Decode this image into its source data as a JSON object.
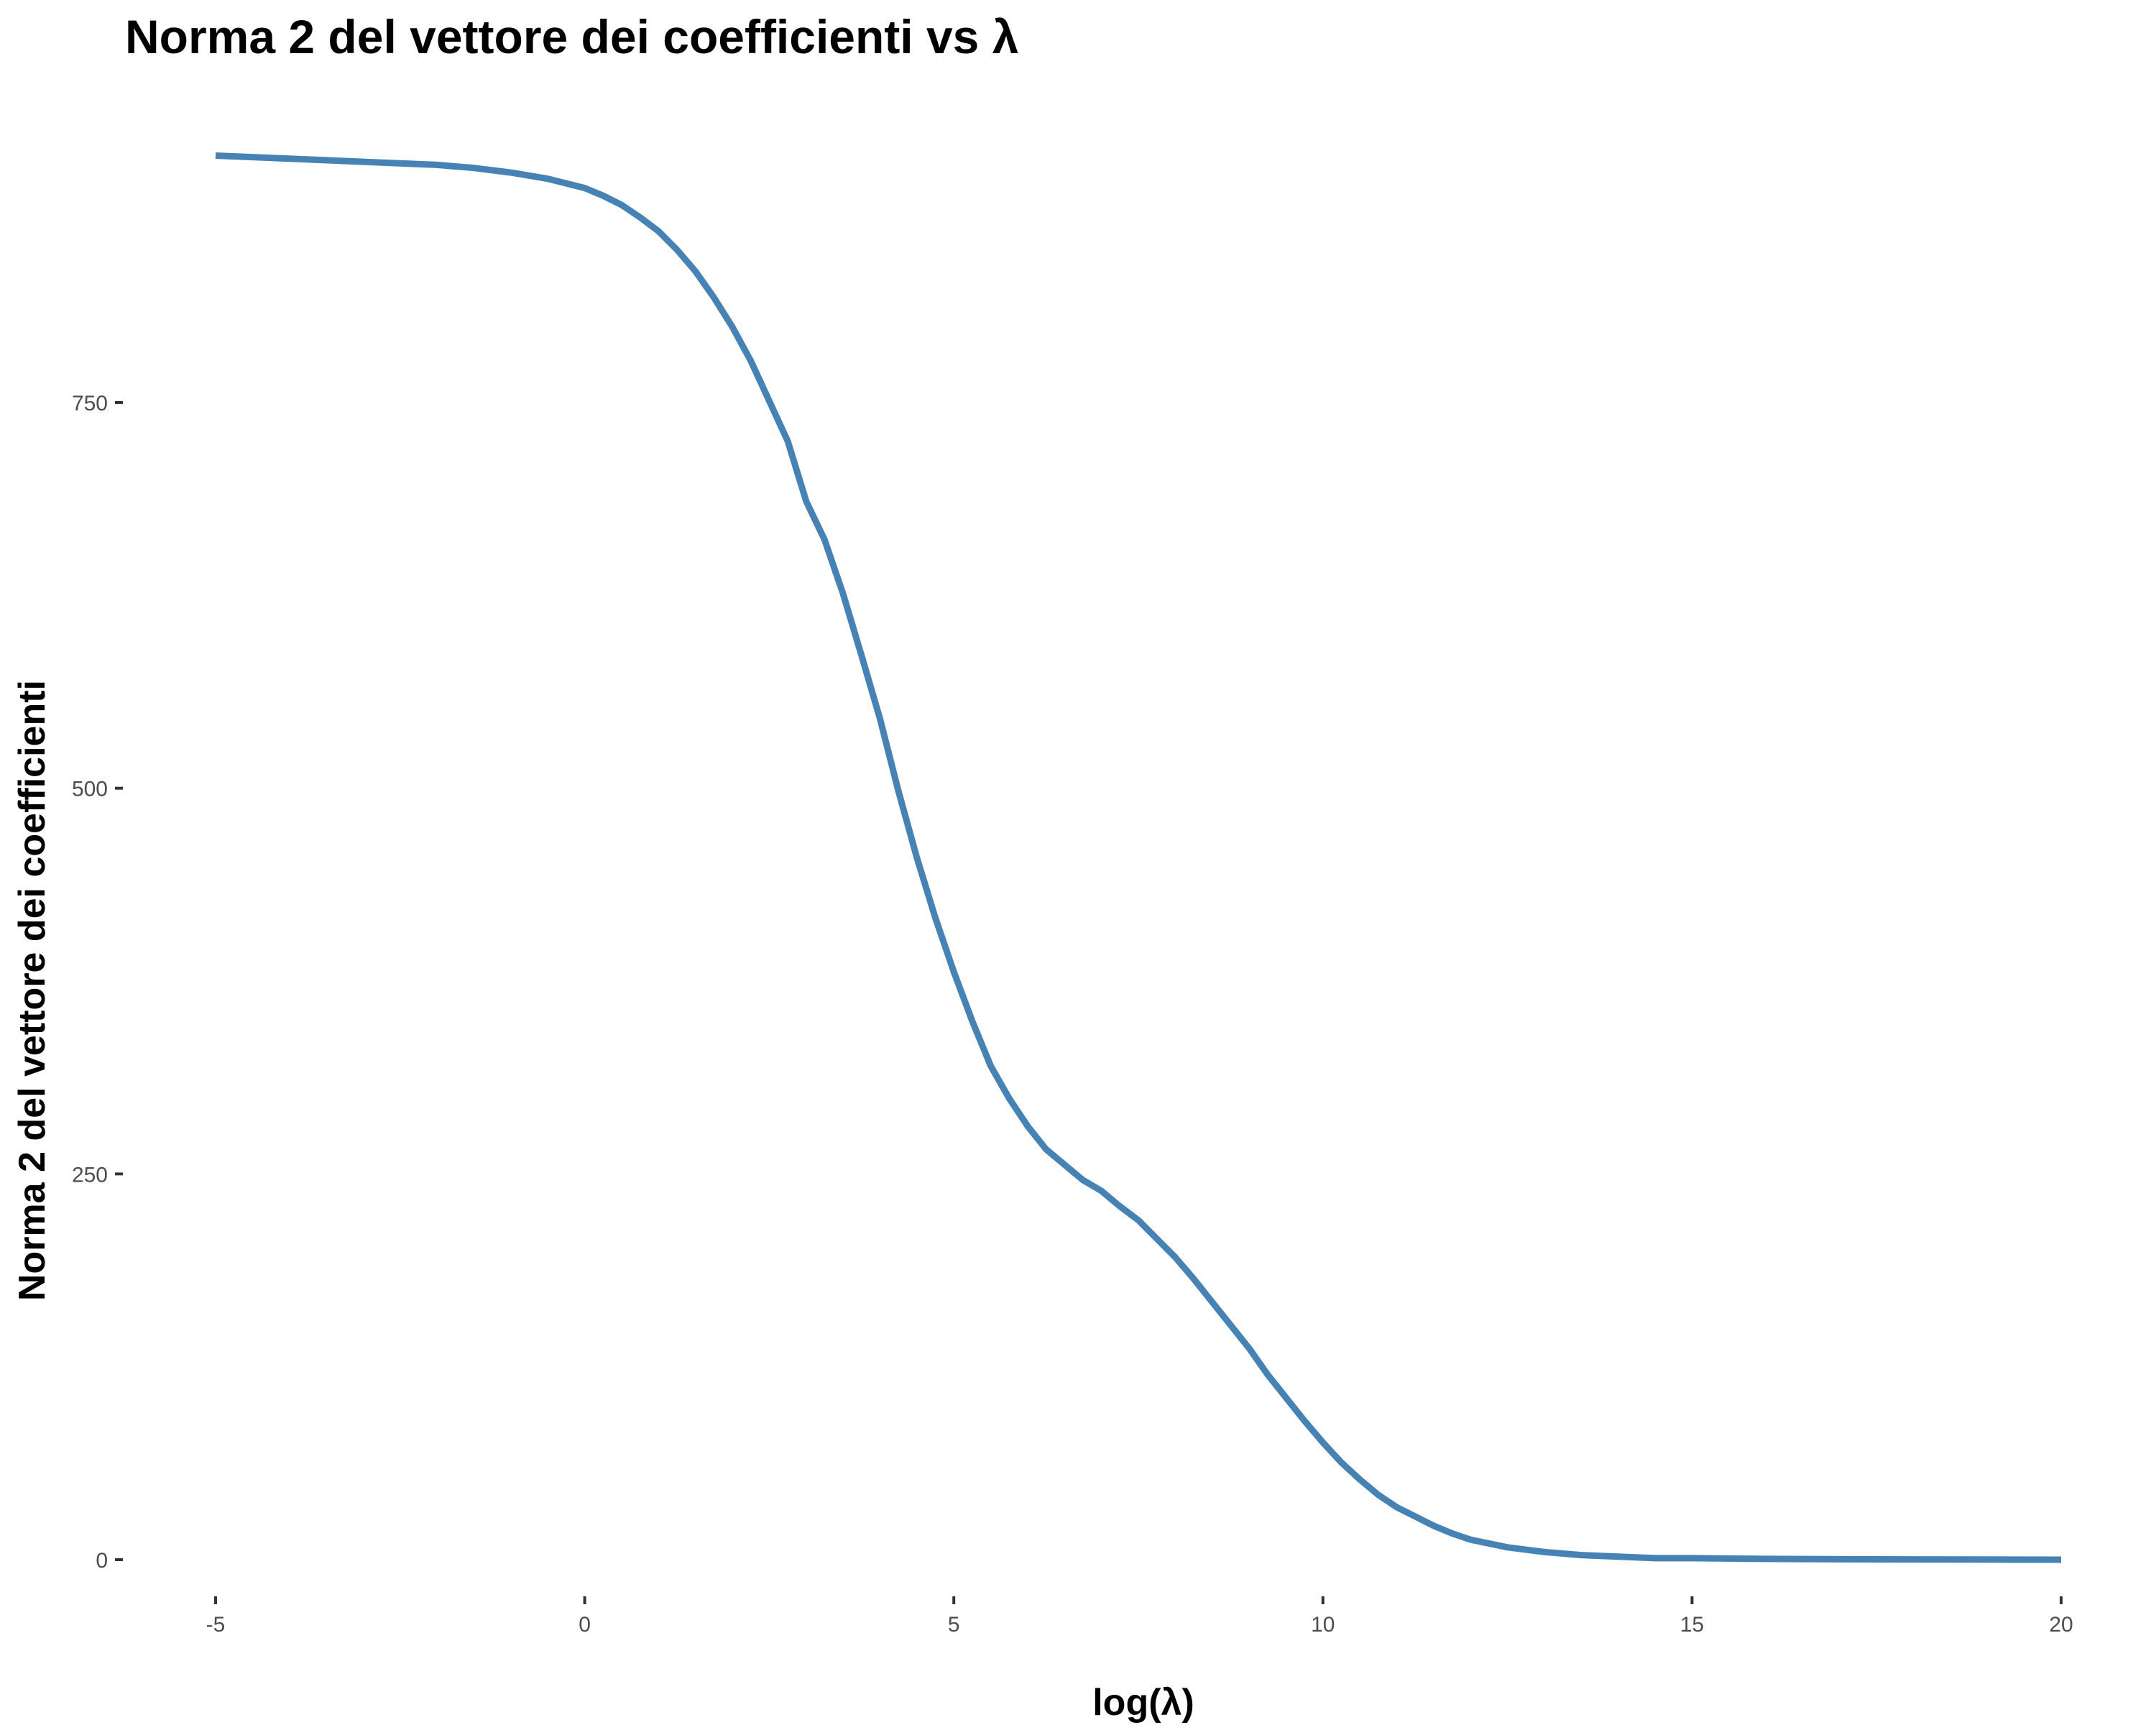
{
  "chart_data": {
    "type": "line",
    "title": "Norma 2 del vettore dei coefficienti vs λ",
    "xlabel": "log(λ)",
    "ylabel": "Norma 2 del vettore dei coefficienti",
    "xlim": [
      -5,
      20
    ],
    "ylim": [
      0,
      910
    ],
    "x_ticks": [
      -5,
      0,
      5,
      10,
      15,
      20
    ],
    "x_tick_labels": [
      "-5",
      "0",
      "5",
      "10",
      "15",
      "20"
    ],
    "y_ticks": [
      0,
      250,
      500,
      750
    ],
    "y_tick_labels": [
      "0",
      "250",
      "500",
      "750"
    ],
    "grid": false,
    "legend": "none",
    "series": [
      {
        "color": "#4682B4",
        "x": [
          -5,
          -4,
          -3,
          -2,
          -1.5,
          -1,
          -0.5,
          0,
          0.25,
          0.5,
          0.75,
          1,
          1.25,
          1.5,
          1.75,
          2,
          2.25,
          2.5,
          2.75,
          3,
          3.25,
          3.5,
          3.75,
          4,
          4.25,
          4.5,
          4.75,
          5,
          5.25,
          5.5,
          5.75,
          6,
          6.25,
          6.5,
          6.75,
          7,
          7.25,
          7.5,
          7.75,
          8,
          8.25,
          8.5,
          8.75,
          9,
          9.25,
          9.5,
          9.75,
          10,
          10.25,
          10.5,
          10.75,
          11,
          11.25,
          11.5,
          11.75,
          12,
          12.5,
          13,
          13.5,
          14,
          14.5,
          15,
          16,
          17,
          18,
          19,
          20
        ],
        "y": [
          910,
          908,
          906,
          904,
          902,
          899,
          895,
          889,
          884,
          878,
          870,
          861,
          849,
          835,
          818,
          799,
          777,
          751,
          725,
          686,
          661,
          626,
          586,
          545,
          498,
          455,
          416,
          381,
          349,
          320,
          299,
          281,
          266,
          256,
          246,
          239,
          229,
          220,
          208,
          196,
          182,
          167,
          152,
          137,
          120,
          105,
          90,
          76,
          63,
          52,
          42,
          34,
          28,
          22,
          17,
          13,
          8,
          5,
          3,
          2,
          1,
          1,
          0.5,
          0.3,
          0.2,
          0.1,
          0
        ]
      }
    ]
  }
}
